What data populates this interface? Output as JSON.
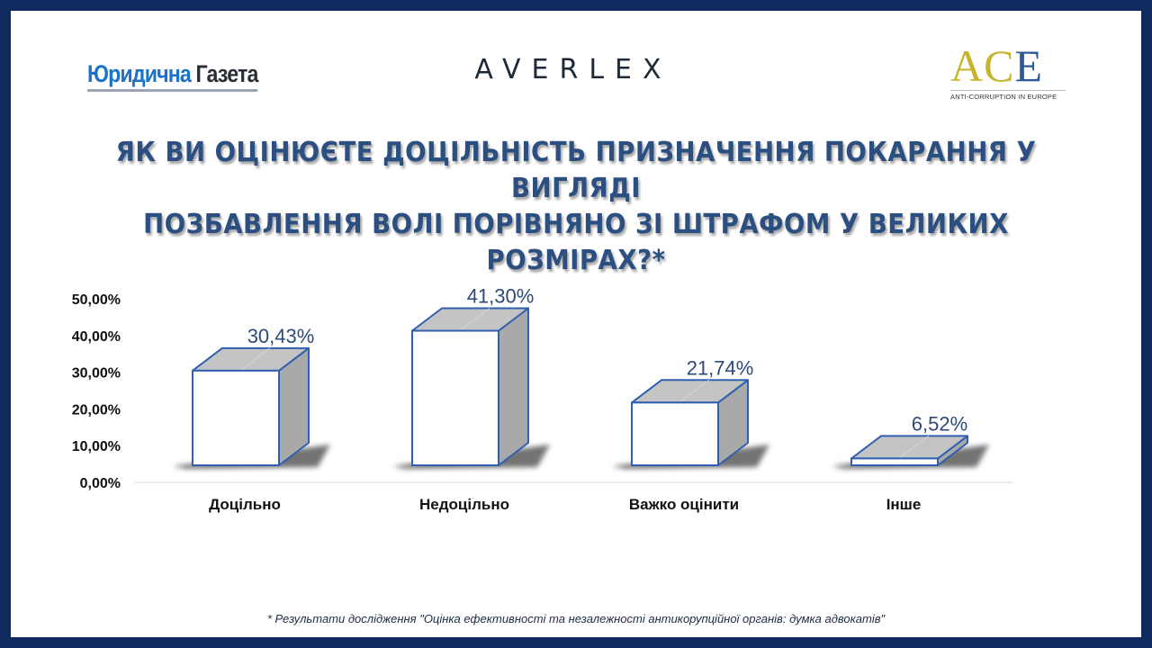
{
  "logos": {
    "yg_word1": "Юридична",
    "yg_word2": "Газета",
    "averlex": "AVERLEX",
    "ace_big": [
      "A",
      "C",
      "E"
    ],
    "ace_small": "ANTI-CORRUPTION IN EUROPE"
  },
  "title_line1": "ЯК ВИ ОЦІНЮЄТЕ ДОЦІЛЬНІСТЬ ПРИЗНАЧЕННЯ ПОКАРАННЯ У ВИГЛЯДІ",
  "title_line2": "ПОЗБАВЛЕННЯ ВОЛІ ПОРІВНЯНО ЗІ ШТРАФОМ У ВЕЛИКИХ РОЗМІРАХ?*",
  "footnote": "* Результати дослідження \"Оцінка ефективності та незалежності антикорупційної органів: думка адвокатів\"",
  "colors": {
    "border": "#0f2a5e",
    "bar_face": "#ffffff",
    "bar_edge": "#3060b0",
    "bar_side": "#a9a9a9",
    "bar_top": "#c4c4c4",
    "title": "#2a4f80",
    "value_label": "#2d4a78"
  },
  "chart_data": {
    "type": "bar",
    "categories": [
      "Доцільно",
      "Недоцільно",
      "Важко оцінити",
      "Інше"
    ],
    "values": [
      30.43,
      41.3,
      21.74,
      6.52
    ],
    "value_labels": [
      "30,43%",
      "41,30%",
      "21,74%",
      "6,52%"
    ],
    "y_ticks": [
      "0,00%",
      "10,00%",
      "20,00%",
      "30,00%",
      "40,00%",
      "50,00%"
    ],
    "ylim": [
      0,
      50
    ],
    "grid": false,
    "legend": "none",
    "style": "3d"
  }
}
